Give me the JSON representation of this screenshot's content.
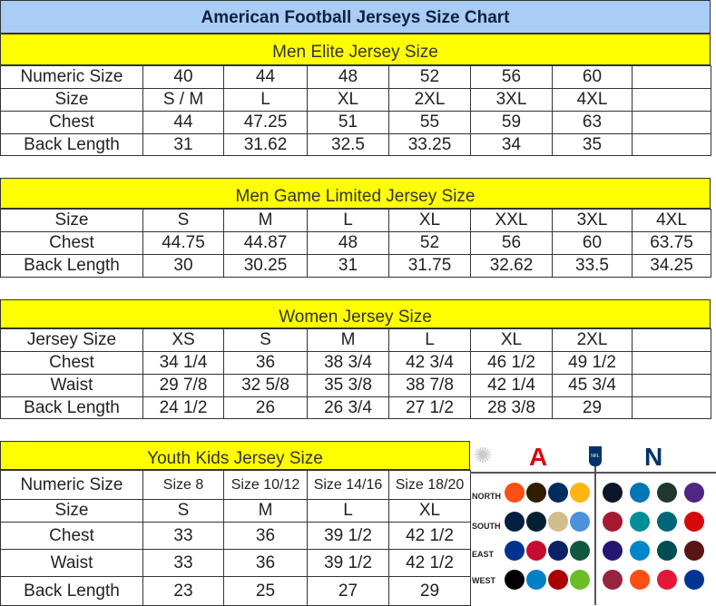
{
  "title": "American Football Jerseys Size Chart",
  "men_elite": {
    "heading": "Men Elite Jersey Size",
    "rows": [
      [
        "Numeric Size",
        "40",
        "44",
        "48",
        "52",
        "56",
        "60",
        ""
      ],
      [
        "Size",
        "S / M",
        "L",
        "XL",
        "2XL",
        "3XL",
        "4XL",
        ""
      ],
      [
        "Chest",
        "44",
        "47.25",
        "51",
        "55",
        "59",
        "63",
        ""
      ],
      [
        "Back Length",
        "31",
        "31.62",
        "32.5",
        "33.25",
        "34",
        "35",
        ""
      ]
    ]
  },
  "men_game": {
    "heading": "Men Game Limited Jersey Size",
    "rows": [
      [
        "Size",
        "S",
        "M",
        "L",
        "XL",
        "XXL",
        "3XL",
        "4XL"
      ],
      [
        "Chest",
        "44.75",
        "44.87",
        "48",
        "52",
        "56",
        "60",
        "63.75"
      ],
      [
        "Back Length",
        "30",
        "30.25",
        "31",
        "31.75",
        "32.62",
        "33.5",
        "34.25"
      ]
    ]
  },
  "women": {
    "heading": "Women Jersey Size",
    "rows": [
      [
        "Jersey Size",
        "XS",
        "S",
        "M",
        "L",
        "XL",
        "2XL",
        ""
      ],
      [
        "Chest",
        "34 1/4",
        "36",
        "38 3/4",
        "42 3/4",
        "46 1/2",
        "49 1/2",
        ""
      ],
      [
        "Waist",
        "29 7/8",
        "32 5/8",
        "35 3/8",
        "38 7/8",
        "42 1/4",
        "45 3/4",
        ""
      ],
      [
        "Back Length",
        "24 1/2",
        "26",
        "26 3/4",
        "27 1/2",
        "28 3/8",
        "29",
        ""
      ]
    ]
  },
  "youth": {
    "heading": "Youth Kids Jersey Size",
    "rows": [
      [
        "Numeric Size",
        "Size 8",
        "Size 10/12",
        "Size 14/16",
        "Size 18/20"
      ],
      [
        "Size",
        "S",
        "M",
        "L",
        "XL"
      ],
      [
        "Chest",
        "33",
        "36",
        "39 1/2",
        "42 1/2"
      ],
      [
        "Waist",
        "33",
        "36",
        "39 1/2",
        "42 1/2"
      ],
      [
        "Back Length",
        "23",
        "25",
        "27",
        "29"
      ]
    ]
  },
  "logos": {
    "afc": "A",
    "nfc": "N",
    "nfl": "NFL",
    "divisions": [
      "NORTH",
      "SOUTH",
      "EAST",
      "WEST"
    ],
    "colors": {
      "afc": "#d50a0a",
      "nfc": "#013369",
      "yellow": "#ffff00",
      "title_bg": "#a9cdf5"
    }
  }
}
